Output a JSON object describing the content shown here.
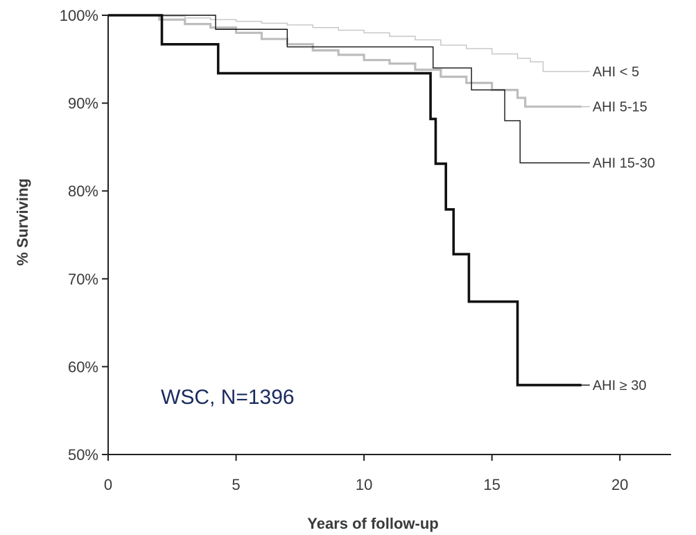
{
  "chart_data": {
    "type": "line",
    "step": true,
    "xlabel": "Years of follow-up",
    "ylabel": "% Surviving",
    "xlim": [
      0,
      22
    ],
    "ylim": [
      50,
      100
    ],
    "xticks": [
      0,
      5,
      10,
      15,
      20
    ],
    "yticks": [
      50,
      60,
      70,
      80,
      90,
      100
    ],
    "x_tick_labels": [
      "0",
      "5",
      "10",
      "15",
      "20"
    ],
    "y_tick_labels": [
      "50%",
      "60%",
      "70%",
      "80%",
      "90%",
      "100%"
    ],
    "grid": false,
    "annotation": "WSC, N=1396",
    "colors": {
      "axis": "#222222",
      "text": "#3a3a3a",
      "annotation": "#1a2a5e",
      "ahi_lt5": "#c4c4c4",
      "ahi_5_15": "#bdbdbd",
      "ahi_15_30": "#111111",
      "ahi_ge30": "#111111"
    },
    "series": [
      {
        "name": "AHI < 5",
        "color_key": "ahi_lt5",
        "style": "thin",
        "points": [
          [
            0,
            100
          ],
          [
            2,
            99.9
          ],
          [
            3,
            99.7
          ],
          [
            4,
            99.5
          ],
          [
            5,
            99.3
          ],
          [
            6,
            99.1
          ],
          [
            7,
            98.9
          ],
          [
            8,
            98.6
          ],
          [
            9,
            98.3
          ],
          [
            10,
            98.0
          ],
          [
            11,
            97.6
          ],
          [
            12,
            97.2
          ],
          [
            13,
            96.6
          ],
          [
            14,
            96.2
          ],
          [
            15,
            95.6
          ],
          [
            16,
            95.1
          ],
          [
            16.5,
            94.7
          ],
          [
            17,
            93.6
          ],
          [
            18.5,
            93.6
          ]
        ]
      },
      {
        "name": "AHI 5-15",
        "color_key": "ahi_5_15",
        "style": "medium",
        "points": [
          [
            0,
            100
          ],
          [
            2,
            99.5
          ],
          [
            3,
            99.0
          ],
          [
            4,
            98.6
          ],
          [
            5,
            98.0
          ],
          [
            6,
            97.3
          ],
          [
            7,
            96.7
          ],
          [
            8,
            96.0
          ],
          [
            9,
            95.5
          ],
          [
            10,
            94.9
          ],
          [
            11,
            94.5
          ],
          [
            12,
            93.8
          ],
          [
            13,
            93.0
          ],
          [
            14,
            92.3
          ],
          [
            15,
            91.5
          ],
          [
            16,
            90.6
          ],
          [
            16.3,
            89.6
          ],
          [
            18.5,
            89.6
          ]
        ]
      },
      {
        "name": "AHI 15-30",
        "color_key": "ahi_15_30",
        "style": "thin",
        "points": [
          [
            0,
            100
          ],
          [
            4.2,
            98.4
          ],
          [
            7,
            96.4
          ],
          [
            12,
            96.4
          ],
          [
            12.7,
            94.0
          ],
          [
            14.2,
            91.5
          ],
          [
            15.5,
            88.0
          ],
          [
            16.1,
            83.2
          ],
          [
            18.5,
            83.2
          ]
        ]
      },
      {
        "name": "AHI ≥ 30",
        "color_key": "ahi_ge30",
        "style": "thick",
        "points": [
          [
            0,
            100
          ],
          [
            2.1,
            96.7
          ],
          [
            4.3,
            93.4
          ],
          [
            12.5,
            93.4
          ],
          [
            12.6,
            88.2
          ],
          [
            12.8,
            83.1
          ],
          [
            13.2,
            77.9
          ],
          [
            13.5,
            72.8
          ],
          [
            14.1,
            67.4
          ],
          [
            16.0,
            57.9
          ],
          [
            18.5,
            57.9
          ]
        ]
      }
    ]
  }
}
